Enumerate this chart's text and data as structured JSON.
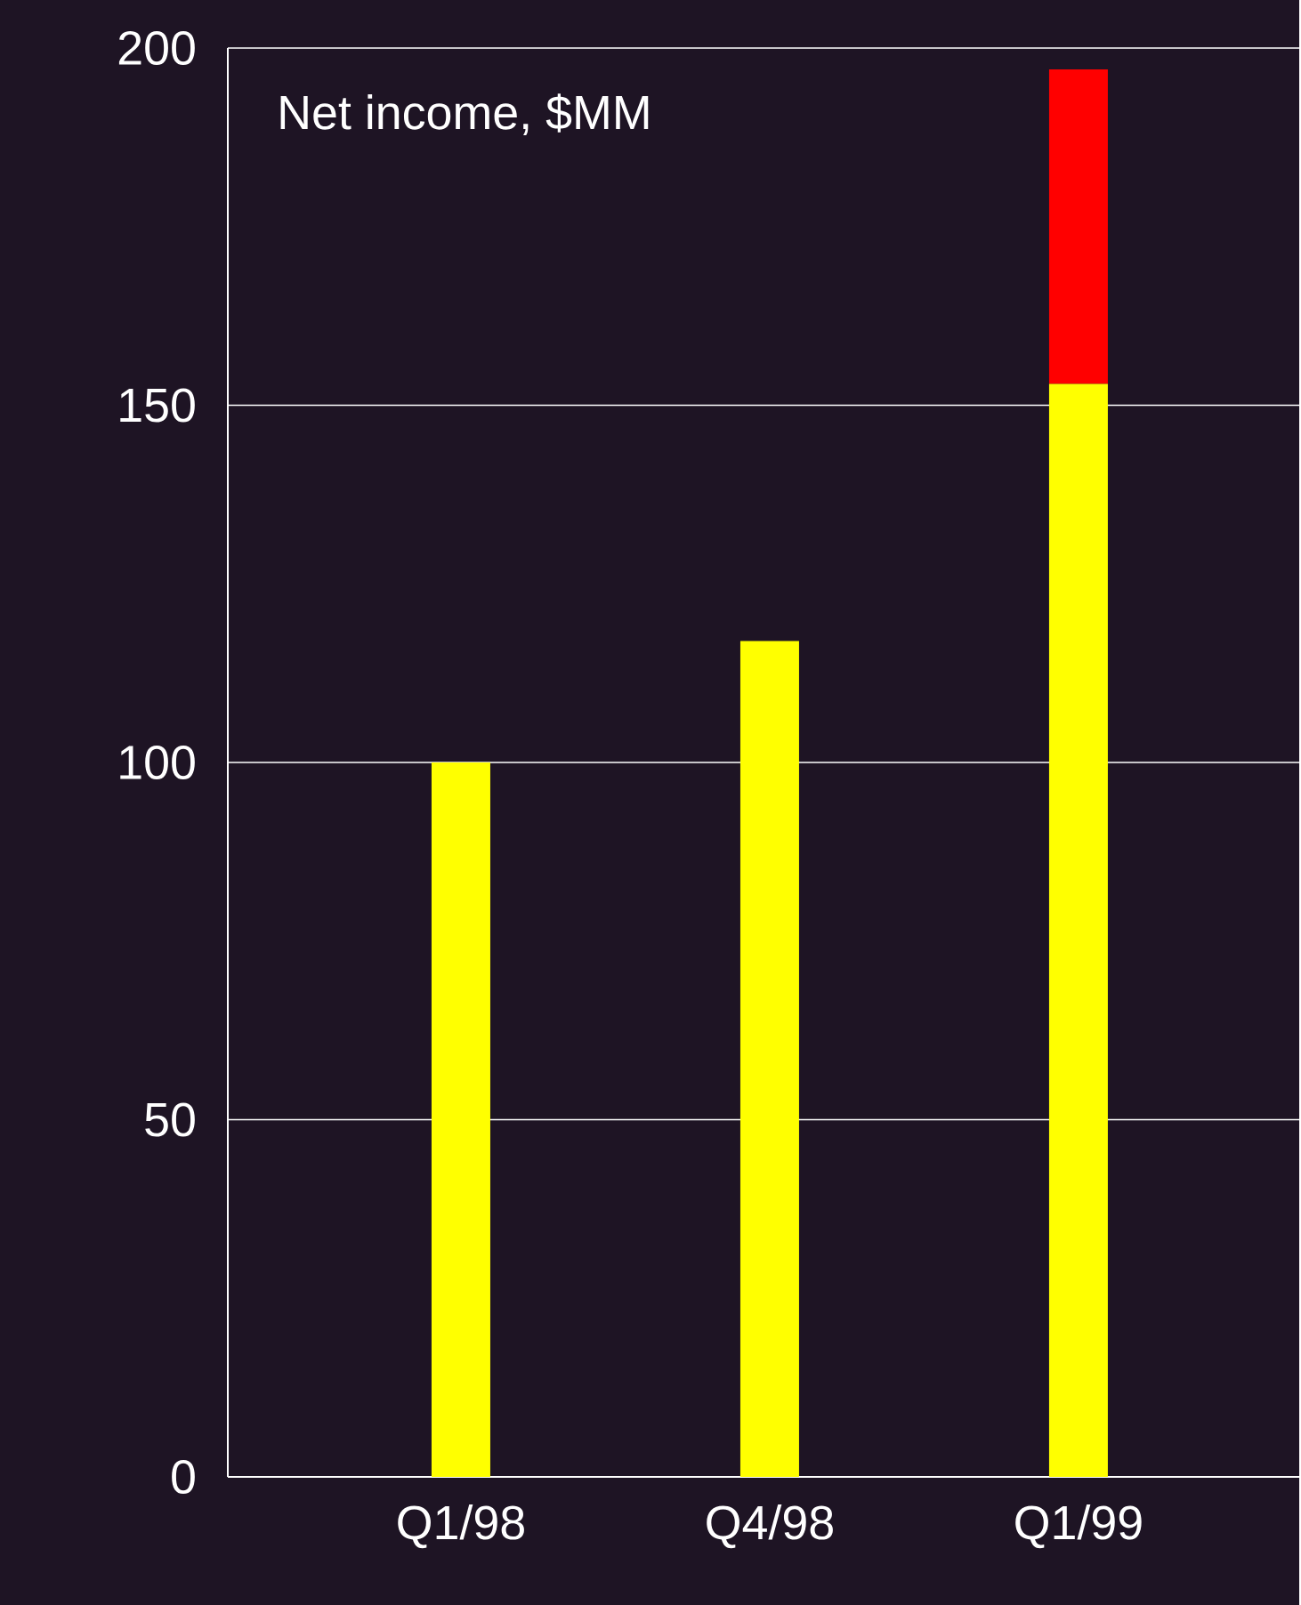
{
  "chart_data": {
    "type": "bar",
    "title": "Net income, $MM",
    "categories": [
      "Q1/98",
      "Q4/98",
      "Q1/99"
    ],
    "stacked": true,
    "series": [
      {
        "color": "#ffff00",
        "values": [
          100,
          117,
          153
        ]
      },
      {
        "color": "#ff0000",
        "values": [
          null,
          null,
          44
        ]
      }
    ],
    "ylim": [
      0,
      200
    ],
    "yticks": [
      0,
      50,
      100,
      150,
      200
    ],
    "grid": "y"
  }
}
